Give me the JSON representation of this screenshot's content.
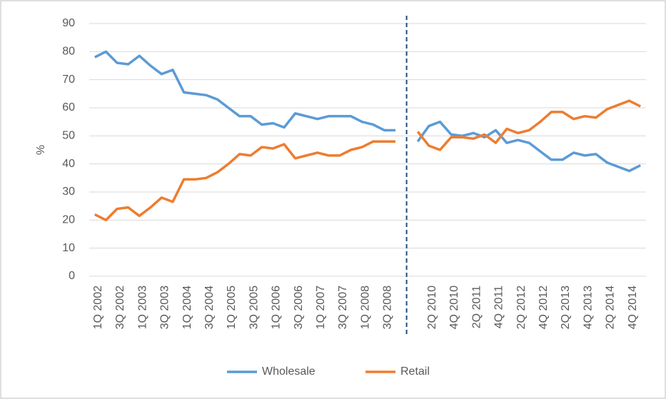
{
  "chart_data": {
    "type": "line",
    "ylabel": "%",
    "categories": [
      "1Q 2002",
      null,
      "3Q 2002",
      null,
      "1Q 2003",
      null,
      "3Q 2003",
      null,
      "1Q 2004",
      null,
      "3Q 2004",
      null,
      "1Q 2005",
      null,
      "3Q 2005",
      null,
      "1Q 2006",
      null,
      "3Q 2006",
      null,
      "1Q 2007",
      null,
      "3Q 2007",
      null,
      "1Q 2008",
      null,
      "3Q 2008",
      null,
      null,
      null,
      "2Q 2010",
      null,
      "4Q 2010",
      null,
      "2Q 2011",
      null,
      "4Q 2011",
      null,
      "2Q 2012",
      null,
      "4Q 2012",
      null,
      "2Q 2013",
      null,
      "4Q 2013",
      null,
      "2Q 2014",
      null,
      "4Q 2014",
      null
    ],
    "series": [
      {
        "name": "Wholesale",
        "color": "#5b9bd5",
        "values": [
          78,
          80,
          76,
          75.5,
          78.5,
          75,
          72,
          73.5,
          65.5,
          65,
          64.5,
          63,
          60,
          57,
          57,
          54,
          54.5,
          53,
          58,
          57,
          56,
          57,
          57,
          57,
          55,
          54,
          52,
          52,
          null,
          48,
          53.5,
          55,
          50.5,
          50,
          51,
          49.5,
          52,
          47.5,
          48.5,
          47.5,
          44.5,
          41.5,
          41.5,
          44,
          43,
          43.5,
          40.5,
          39,
          37.5,
          39.5
        ]
      },
      {
        "name": "Retail",
        "color": "#ed7d31",
        "values": [
          22,
          20,
          24,
          24.5,
          21.5,
          24.5,
          28,
          26.5,
          34.5,
          34.5,
          35,
          37,
          40,
          43.5,
          43,
          46,
          45.5,
          47,
          42,
          43,
          44,
          43,
          43,
          45,
          46,
          48,
          48,
          48,
          null,
          51.5,
          46.5,
          45,
          49.5,
          49.5,
          49,
          50.5,
          47.5,
          52.5,
          51,
          52,
          55,
          58.5,
          58.5,
          56,
          57,
          56.5,
          59.5,
          61,
          62.5,
          60.5
        ]
      }
    ],
    "ylim": [
      0,
      90
    ],
    "yticks": [
      0,
      10,
      20,
      30,
      40,
      50,
      60,
      70,
      80,
      90
    ],
    "grid": true,
    "legend": "bottom"
  }
}
